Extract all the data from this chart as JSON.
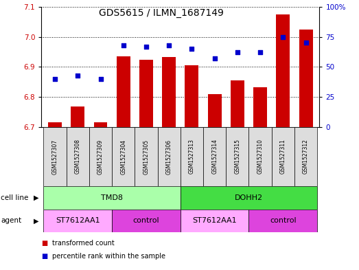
{
  "title": "GDS5615 / ILMN_1687149",
  "samples": [
    "GSM1527307",
    "GSM1527308",
    "GSM1527309",
    "GSM1527304",
    "GSM1527305",
    "GSM1527306",
    "GSM1527313",
    "GSM1527314",
    "GSM1527315",
    "GSM1527310",
    "GSM1527311",
    "GSM1527312"
  ],
  "transformed_counts": [
    6.716,
    6.768,
    6.716,
    6.935,
    6.924,
    6.933,
    6.905,
    6.808,
    6.856,
    6.832,
    7.075,
    7.025
  ],
  "percentile_ranks": [
    40,
    43,
    40,
    68,
    67,
    68,
    65,
    57,
    62,
    62,
    75,
    70
  ],
  "ylim_left": [
    6.7,
    7.1
  ],
  "ylim_right": [
    0,
    100
  ],
  "yticks_left": [
    6.7,
    6.8,
    6.9,
    7.0,
    7.1
  ],
  "yticks_right": [
    0,
    25,
    50,
    75,
    100
  ],
  "ytick_labels_right": [
    "0",
    "25",
    "50",
    "75",
    "100%"
  ],
  "bar_color": "#cc0000",
  "dot_color": "#0000cc",
  "bar_bottom": 6.7,
  "cell_line_groups": [
    {
      "label": "TMD8",
      "start": 0,
      "end": 5,
      "color": "#aaffaa"
    },
    {
      "label": "DOHH2",
      "start": 6,
      "end": 11,
      "color": "#44dd44"
    }
  ],
  "agent_groups": [
    {
      "label": "ST7612AA1",
      "start": 0,
      "end": 2,
      "color": "#ffaaff"
    },
    {
      "label": "control",
      "start": 3,
      "end": 5,
      "color": "#dd44dd"
    },
    {
      "label": "ST7612AA1",
      "start": 6,
      "end": 8,
      "color": "#ffaaff"
    },
    {
      "label": "control",
      "start": 9,
      "end": 11,
      "color": "#dd44dd"
    }
  ],
  "sample_bg_color": "#dddddd",
  "legend_items": [
    {
      "label": "transformed count",
      "color": "#cc0000"
    },
    {
      "label": "percentile rank within the sample",
      "color": "#0000cc"
    }
  ],
  "tick_label_color_left": "#cc0000",
  "tick_label_color_right": "#0000cc",
  "fig_width": 5.23,
  "fig_height": 3.93,
  "dpi": 100
}
